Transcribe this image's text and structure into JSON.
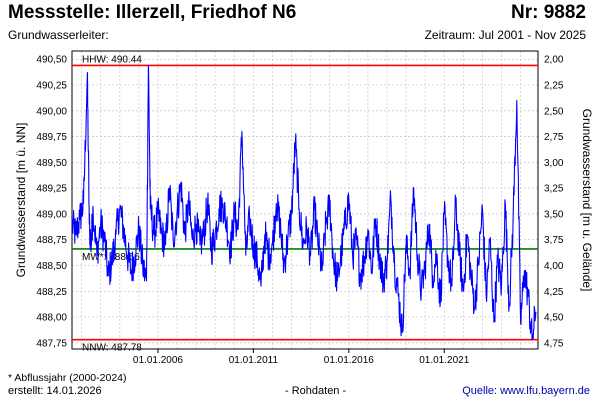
{
  "header": {
    "title": "Messstelle: Illerzell, Friedhof N6",
    "number": "Nr: 9882",
    "aquifer": "Grundwasserleiter:",
    "period": "Zeitraum: Jul 2001 - Nov 2025"
  },
  "footer": {
    "note": "* Abflussjahr (2000-2024)",
    "created": "erstellt:  14.01.2026",
    "raw": "- Rohdaten -",
    "source": "Quelle:  www.lfu.bayern.de"
  },
  "chart_data": {
    "type": "line",
    "ylabel": "Grundwasserstand [m ü. NN]",
    "ylabel_right": "Grundwasserstand [m u. Gelände]",
    "ylim": [
      487.69,
      490.58
    ],
    "y_ticks": [
      "490,50",
      "490,25",
      "490,00",
      "489,75",
      "489,50",
      "489,25",
      "489,00",
      "488,75",
      "488,50",
      "488,25",
      "488,00",
      "487,75"
    ],
    "y_ticks_right": [
      "2,00",
      "2,25",
      "2,50",
      "2,75",
      "3,00",
      "3,25",
      "3,50",
      "3,75",
      "4,00",
      "4,25",
      "4,50",
      "4,75"
    ],
    "x_ticks": [
      "01.01.2006",
      "01.01.2011",
      "01.01.2016",
      "01.01.2021"
    ],
    "xlim": [
      "2001-07-01",
      "2025-11-30"
    ],
    "grid": true,
    "color": "#0000ff",
    "reference_lines": [
      {
        "label": "HHW: 490.44",
        "value": 490.44,
        "color": "#ff0000"
      },
      {
        "label": "MW*: 488.66",
        "value": 488.66,
        "color": "#008000"
      },
      {
        "label": "NNW: 487.78",
        "value": 487.78,
        "color": "#ff0000"
      }
    ],
    "series": [
      {
        "x": [
          2001.5,
          2001.7,
          2001.9,
          2002.1,
          2002.3,
          2002.4,
          2002.5,
          2002.6,
          2002.8,
          2003.0,
          2003.2,
          2003.4,
          2003.6,
          2003.8,
          2004.0,
          2004.2,
          2004.4,
          2004.6,
          2004.8,
          2005.0,
          2005.2,
          2005.4,
          2005.5,
          2005.6,
          2005.8,
          2006.0,
          2006.2,
          2006.4,
          2006.6,
          2006.8,
          2007.0,
          2007.2,
          2007.4,
          2007.6,
          2007.8,
          2008.0,
          2008.2,
          2008.4,
          2008.6,
          2008.8,
          2009.0,
          2009.2,
          2009.4,
          2009.6,
          2009.8,
          2010.0,
          2010.2,
          2010.4,
          2010.6,
          2010.8,
          2011.0,
          2011.2,
          2011.4,
          2011.6,
          2011.8,
          2012.0,
          2012.2,
          2012.4,
          2012.6,
          2012.8,
          2013.0,
          2013.2,
          2013.4,
          2013.6,
          2013.8,
          2014.0,
          2014.2,
          2014.4,
          2014.6,
          2014.8,
          2015.0,
          2015.2,
          2015.4,
          2015.6,
          2015.8,
          2016.0,
          2016.2,
          2016.4,
          2016.6,
          2016.8,
          2017.0,
          2017.2,
          2017.4,
          2017.6,
          2017.8,
          2018.0,
          2018.2,
          2018.4,
          2018.6,
          2018.8,
          2019.0,
          2019.2,
          2019.4,
          2019.6,
          2019.8,
          2020.0,
          2020.2,
          2020.4,
          2020.6,
          2020.8,
          2021.0,
          2021.2,
          2021.4,
          2021.6,
          2021.8,
          2022.0,
          2022.2,
          2022.4,
          2022.6,
          2022.8,
          2023.0,
          2023.2,
          2023.4,
          2023.6,
          2023.8,
          2024.0,
          2024.2,
          2024.4,
          2024.6,
          2024.8,
          2025.0,
          2025.2,
          2025.4,
          2025.6,
          2025.8
        ],
        "values": [
          488.9,
          488.8,
          488.95,
          489.1,
          490.35,
          488.9,
          488.7,
          489.05,
          488.6,
          488.9,
          488.75,
          488.4,
          488.55,
          488.8,
          489.05,
          488.85,
          488.6,
          488.45,
          488.6,
          488.85,
          488.5,
          488.35,
          490.44,
          489.05,
          488.8,
          489.0,
          488.8,
          488.7,
          489.25,
          488.75,
          489.0,
          489.3,
          488.8,
          489.1,
          488.75,
          488.9,
          488.7,
          488.8,
          489.1,
          488.65,
          488.8,
          489.05,
          489.1,
          488.9,
          488.65,
          489.0,
          488.85,
          489.8,
          488.6,
          488.95,
          488.7,
          488.55,
          488.3,
          488.8,
          488.6,
          488.7,
          489.1,
          488.9,
          488.5,
          488.75,
          489.0,
          489.7,
          489.05,
          488.7,
          488.85,
          488.6,
          489.05,
          488.7,
          488.45,
          488.9,
          489.1,
          488.55,
          488.35,
          488.6,
          488.9,
          489.15,
          488.6,
          488.75,
          488.4,
          488.55,
          488.85,
          488.45,
          488.95,
          488.6,
          488.35,
          488.55,
          489.15,
          488.5,
          488.2,
          487.85,
          488.7,
          488.45,
          489.25,
          488.6,
          488.25,
          488.5,
          488.9,
          488.4,
          488.6,
          488.15,
          489.0,
          488.55,
          488.3,
          489.1,
          488.6,
          488.25,
          488.8,
          488.4,
          488.1,
          488.55,
          489.05,
          488.2,
          488.75,
          487.95,
          488.55,
          488.3,
          489.1,
          488.1,
          488.9,
          490.1,
          487.95,
          488.45,
          488.2,
          487.78,
          488.05
        ]
      }
    ]
  }
}
